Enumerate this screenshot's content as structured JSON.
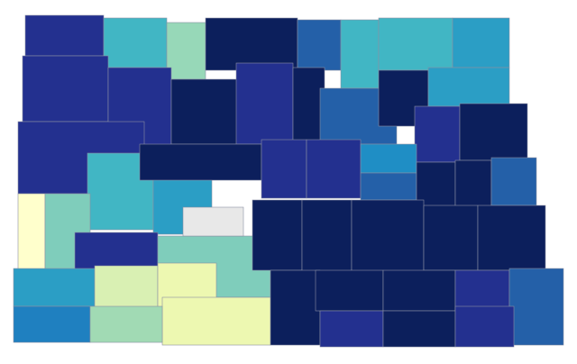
{
  "map": {
    "regions": [
      {
        "color": "#23308f"
      },
      {
        "color": "#41b6c4"
      },
      {
        "color": "#97d8b8"
      },
      {
        "color": "#0c1f5c"
      },
      {
        "color": "#2460a8"
      },
      {
        "color": "#41b6c4"
      },
      {
        "color": "#41b6c4"
      },
      {
        "color": "#2b9ec5"
      },
      {
        "color": "#23308f"
      },
      {
        "color": "#23308f"
      },
      {
        "color": "#0c1f5c"
      },
      {
        "color": "#23308f"
      },
      {
        "color": "#0c1f5c"
      },
      {
        "color": "#2460a8"
      },
      {
        "color": "#0c1f5c"
      },
      {
        "color": "#2b9ec5"
      },
      {
        "color": "#23308f"
      },
      {
        "color": "#0c1f5c"
      },
      {
        "color": "#23308f"
      },
      {
        "color": "#41b6c4"
      },
      {
        "color": "#2b9ec5"
      },
      {
        "color": "#0c1f5c"
      },
      {
        "color": "#23308f"
      },
      {
        "color": "#23308f"
      },
      {
        "color": "#1f8ec5"
      },
      {
        "color": "#2460a8"
      },
      {
        "color": "#0c1f5c"
      },
      {
        "color": "#0c1f5c"
      },
      {
        "color": "#2460a8"
      },
      {
        "color": "#ffffcc"
      },
      {
        "color": "#7fcdbb"
      },
      {
        "color": "#23308f"
      },
      {
        "color": "#7fcdbb"
      },
      {
        "color": "#e8e8e8"
      },
      {
        "color": "#0c1f5c"
      },
      {
        "color": "#0c1f5c"
      },
      {
        "color": "#0c1f5c"
      },
      {
        "color": "#0c1f5c"
      },
      {
        "color": "#0c1f5c"
      },
      {
        "color": "#2b9ec5"
      },
      {
        "color": "#d9f0b3"
      },
      {
        "color": "#edf8b1"
      },
      {
        "color": "#edf8b1"
      },
      {
        "color": "#0c1f5c"
      },
      {
        "color": "#0c1f5c"
      },
      {
        "color": "#0c1f5c"
      },
      {
        "color": "#23308f"
      },
      {
        "color": "#2460a8"
      },
      {
        "color": "#1f80c0"
      },
      {
        "color": "#a1dab4"
      },
      {
        "color": "#23308f"
      },
      {
        "color": "#0c1f5c"
      },
      {
        "color": "#23308f"
      }
    ]
  }
}
